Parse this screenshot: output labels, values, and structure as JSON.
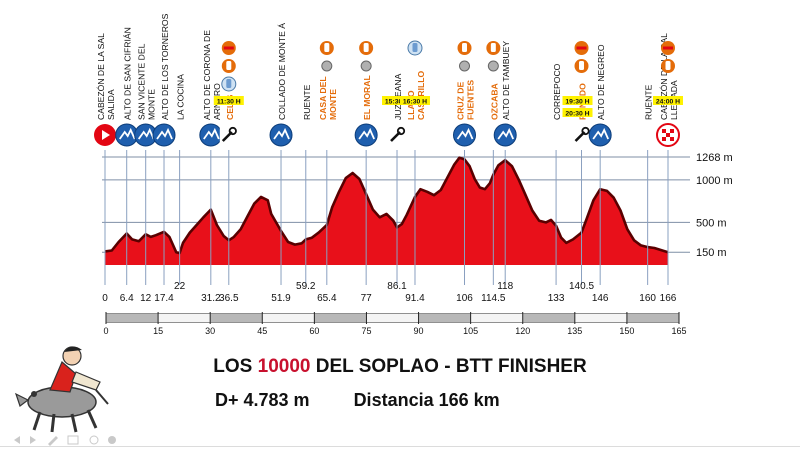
{
  "title": {
    "pre": "LOS ",
    "highlight": "10000",
    "post": " DEL SOPLAO  - BTT FINISHER"
  },
  "stats": {
    "elevation_gain": "D+ 4.783 m",
    "distance": "Distancia 166 km"
  },
  "chart_data": {
    "type": "area",
    "title": "LOS 10000 DEL SOPLAO - BTT FINISHER",
    "xlabel": "",
    "ylabel": "",
    "xlim": [
      0,
      166
    ],
    "ylim": [
      0,
      1350
    ],
    "colors": {
      "fill": "#e8101a",
      "edge": "#5a0000",
      "axis": "#222222",
      "orange": "#e46c0a",
      "icon_blue": "#1f5fae",
      "red_icon": "#e30613"
    },
    "elevation_gridlines": [
      150,
      500,
      1000,
      1268
    ],
    "elevation_labels": [
      "150 m",
      "500 m",
      "1000 m",
      "1268 m"
    ],
    "ruler_ticks": [
      0,
      15,
      30,
      45,
      60,
      75,
      90,
      105,
      120,
      135,
      150,
      165
    ],
    "profile": {
      "x": [
        0,
        2,
        4,
        6.4,
        8,
        10,
        12,
        13.5,
        15,
        17.4,
        19,
        21,
        22,
        23,
        25,
        27,
        29,
        31.2,
        33,
        35,
        36.5,
        38,
        40,
        42,
        44,
        46,
        48,
        49,
        51.9,
        54,
        56,
        58,
        59.2,
        61,
        63,
        65.4,
        67,
        69,
        71,
        73,
        75,
        77,
        79,
        81,
        83,
        85,
        86.1,
        87.5,
        89,
        91.4,
        93,
        95,
        97,
        99,
        101,
        103,
        104.5,
        106,
        107.5,
        109,
        110.5,
        112,
        113.5,
        114.5,
        116,
        118,
        120,
        122,
        124,
        126,
        128,
        130,
        131.5,
        133,
        134.5,
        136,
        138,
        140.5,
        142,
        144,
        146,
        148,
        150,
        152,
        154,
        156,
        158,
        160,
        162,
        164,
        166
      ],
      "y": [
        160,
        170,
        270,
        370,
        300,
        280,
        360,
        330,
        350,
        390,
        330,
        150,
        140,
        260,
        380,
        470,
        560,
        650,
        470,
        340,
        290,
        330,
        420,
        570,
        720,
        800,
        760,
        600,
        400,
        270,
        240,
        255,
        300,
        320,
        380,
        470,
        680,
        860,
        1020,
        1080,
        1010,
        830,
        650,
        560,
        600,
        520,
        440,
        480,
        590,
        800,
        890,
        860,
        820,
        880,
        1030,
        1180,
        1260,
        1240,
        1160,
        1010,
        910,
        890,
        960,
        1060,
        1170,
        1230,
        1160,
        1000,
        820,
        640,
        520,
        500,
        530,
        460,
        320,
        260,
        300,
        380,
        540,
        760,
        890,
        870,
        790,
        640,
        420,
        290,
        230,
        210,
        200,
        175,
        150
      ]
    },
    "km_markers": [
      {
        "km": 0,
        "label": "0"
      },
      {
        "km": 6.4,
        "label": "6.4"
      },
      {
        "km": 12,
        "label": "12"
      },
      {
        "km": 17.4,
        "label": "17.4"
      },
      {
        "km": 22,
        "label": "22"
      },
      {
        "km": 31.2,
        "label": "31.2"
      },
      {
        "km": 36.5,
        "label": "36.5"
      },
      {
        "km": 51.9,
        "label": "51.9"
      },
      {
        "km": 59.2,
        "label": "59.2"
      },
      {
        "km": 65.4,
        "label": "65.4"
      },
      {
        "km": 77,
        "label": "77"
      },
      {
        "km": 86.1,
        "label": "86.1"
      },
      {
        "km": 91.4,
        "label": "91.4"
      },
      {
        "km": 106,
        "label": "106"
      },
      {
        "km": 114.5,
        "label": "114.5"
      },
      {
        "km": 118,
        "label": "118"
      },
      {
        "km": 133,
        "label": "133"
      },
      {
        "km": 140.5,
        "label": "140.5"
      },
      {
        "km": 146,
        "label": "146"
      },
      {
        "km": 160,
        "label": "160"
      },
      {
        "km": 166,
        "label": "166"
      }
    ],
    "waypoints": [
      {
        "km": 0,
        "name": "CABEZÓN DE LA SAL\nSALIDA",
        "icon": "start-play-icon"
      },
      {
        "km": 6.4,
        "name": "ALTO DE SAN CIFRIÁN",
        "icon": "mountain-icon"
      },
      {
        "km": 12,
        "name": "SAN VICENTE DEL\nMONTE",
        "icon": "mountain-icon"
      },
      {
        "km": 17.4,
        "name": "ALTO DE LOS TORNEROS",
        "icon": "mountain-icon"
      },
      {
        "km": 22,
        "name": "LA COCINA"
      },
      {
        "km": 31.2,
        "name": "ALTO DE CORONA DE\nARNERO",
        "icon": "mountain-icon"
      },
      {
        "km": 36.5,
        "name": "CELIS",
        "orange": true,
        "icon": "repair-wrench-icon",
        "time": "11:30 H"
      },
      {
        "km": 51.9,
        "name": "COLLADO DE MONTE Á",
        "icon": "mountain-icon"
      },
      {
        "km": 59.2,
        "name": "RUENTE"
      },
      {
        "km": 65.4,
        "name": "CASA DEL\nMONTE",
        "orange": true
      },
      {
        "km": 77,
        "name": "EL MORAL",
        "orange": true,
        "icon": "mountain-icon"
      },
      {
        "km": 86.1,
        "name": "JUZMEANA",
        "icon": "repair-wrench-icon",
        "time": "15:30 H"
      },
      {
        "km": 91.4,
        "name": "LLANO\nCASTRILLO",
        "orange": true,
        "time": "16:30 H"
      },
      {
        "km": 106,
        "name": "CRUZ DE\nFUENTES",
        "orange": true,
        "icon": "mountain-icon"
      },
      {
        "km": 114.5,
        "name": "OZCABA",
        "orange": true
      },
      {
        "km": 118,
        "name": "ALTO DE TAMBUEY",
        "icon": "mountain-icon"
      },
      {
        "km": 133,
        "name": "CORREPOCO"
      },
      {
        "km": 140.5,
        "name": "RENEDO",
        "orange": true,
        "icon": "repair-wrench-icon",
        "time": "19:30 H",
        "time2": "20:30 H"
      },
      {
        "km": 146,
        "name": "ALTO DE NEGREO",
        "icon": "mountain-icon"
      },
      {
        "km": 160,
        "name": "RUENTE"
      },
      {
        "km": 166,
        "name": "CABEZÓN DE LA SAL\nLLEGADA",
        "icon": "finish-flag-icon",
        "time": "24:00 H"
      }
    ]
  }
}
